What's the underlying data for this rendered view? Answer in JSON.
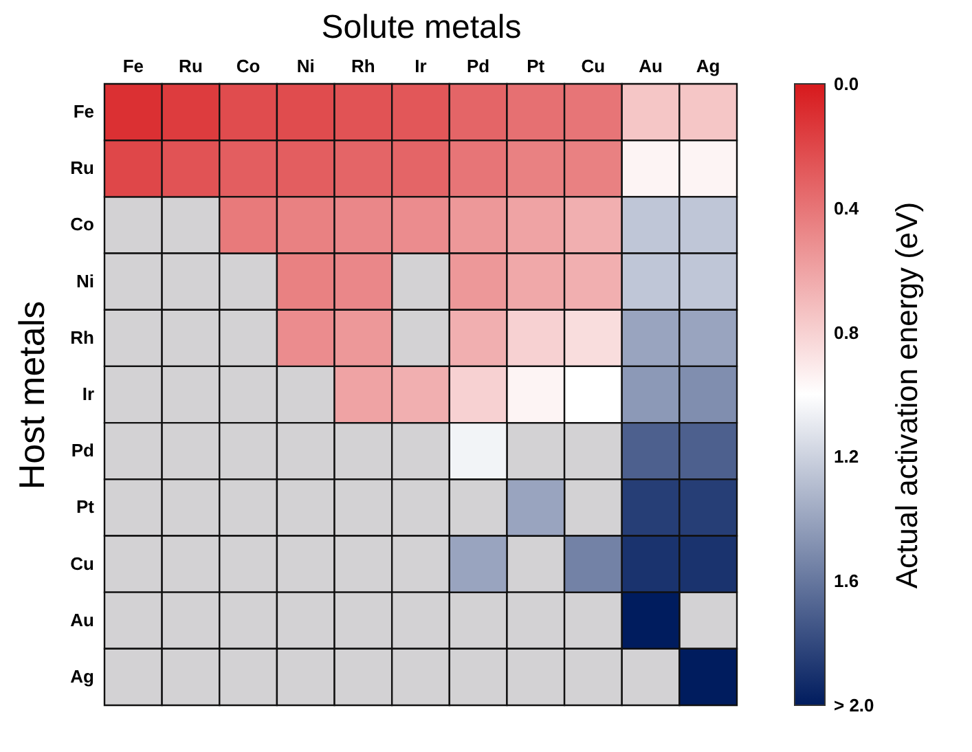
{
  "chart_data": {
    "type": "heatmap",
    "xlabel": "Solute metals",
    "ylabel": "Host metals",
    "clabel": "Actual activation energy (eV)",
    "categories": [
      "Fe",
      "Ru",
      "Co",
      "Ni",
      "Rh",
      "Ir",
      "Pd",
      "Pt",
      "Cu",
      "Au",
      "Ag"
    ],
    "y_categories": [
      "Fe",
      "Ru",
      "Co",
      "Ni",
      "Rh",
      "Ir",
      "Pd",
      "Pt",
      "Cu",
      "Au",
      "Ag"
    ],
    "cells": [
      [
        0.1,
        0.15,
        0.22,
        0.22,
        0.25,
        0.27,
        0.33,
        0.38,
        0.4,
        0.75,
        0.75
      ],
      [
        0.2,
        0.25,
        0.3,
        0.3,
        0.33,
        0.33,
        0.4,
        0.45,
        0.45,
        0.95,
        0.95
      ],
      [
        null,
        null,
        0.42,
        0.45,
        0.48,
        0.5,
        0.55,
        0.6,
        0.65,
        1.25,
        1.25
      ],
      [
        null,
        null,
        null,
        0.45,
        0.48,
        null,
        0.55,
        0.62,
        0.65,
        1.25,
        1.25
      ],
      [
        null,
        null,
        null,
        0.5,
        0.55,
        null,
        0.65,
        0.8,
        0.85,
        1.4,
        1.4
      ],
      [
        null,
        null,
        null,
        null,
        0.6,
        0.65,
        0.8,
        0.95,
        1.0,
        1.45,
        1.5
      ],
      [
        null,
        null,
        null,
        null,
        null,
        null,
        1.05,
        null,
        null,
        1.7,
        1.7
      ],
      [
        null,
        null,
        null,
        null,
        null,
        null,
        null,
        1.4,
        null,
        1.85,
        1.85
      ],
      [
        null,
        null,
        null,
        null,
        null,
        null,
        1.4,
        null,
        1.55,
        1.9,
        1.9
      ],
      [
        null,
        null,
        null,
        null,
        null,
        null,
        null,
        null,
        null,
        2.0,
        null
      ],
      [
        null,
        null,
        null,
        null,
        null,
        null,
        null,
        null,
        null,
        null,
        2.0
      ]
    ],
    "clim": [
      0,
      2.0
    ],
    "cticks": [
      {
        "value": 0,
        "label": "0.0"
      },
      0.4,
      0.8,
      1.2,
      1.6,
      {
        "value": 2.0,
        "label": "> 2.0"
      }
    ]
  }
}
